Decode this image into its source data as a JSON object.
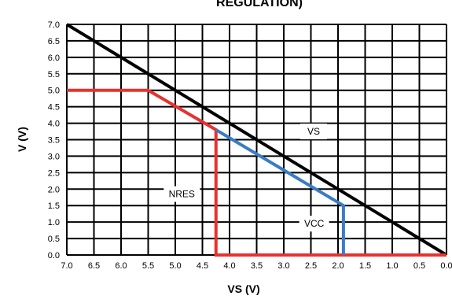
{
  "chart_data": {
    "type": "line",
    "title": "REGULATION)",
    "xlabel": "VS (V)",
    "ylabel": "V (V)",
    "xlim": [
      7.0,
      0.0
    ],
    "ylim": [
      0.0,
      7.0
    ],
    "x_reversed": true,
    "grid": true,
    "x_ticks": [
      "7.0",
      "6.5",
      "6.0",
      "5.5",
      "5.0",
      "4.5",
      "4.0",
      "3.5",
      "3.0",
      "2.5",
      "2.0",
      "1.5",
      "1.0",
      "0.5",
      "0.0"
    ],
    "y_ticks": [
      "0.0",
      "0.5",
      "1.0",
      "1.5",
      "2.0",
      "2.5",
      "3.0",
      "3.5",
      "4.0",
      "4.5",
      "5.0",
      "5.5",
      "6.0",
      "6.5",
      "7.0"
    ],
    "colors": {
      "vs": "#000000",
      "nres": "#e8312f",
      "vcc": "#3a7cc4",
      "grid": "#000000"
    },
    "series": [
      {
        "key": "vs",
        "points": [
          [
            7.0,
            7.0
          ],
          [
            0.0,
            0.0
          ]
        ]
      },
      {
        "key": "nres",
        "points": [
          [
            7.0,
            5.0
          ],
          [
            5.5,
            5.0
          ],
          [
            4.25,
            3.8
          ],
          [
            4.25,
            0.0
          ],
          [
            0.0,
            0.0
          ]
        ]
      },
      {
        "key": "vcc",
        "points": [
          [
            4.25,
            3.8
          ],
          [
            1.9,
            1.5
          ],
          [
            1.9,
            0.0
          ]
        ]
      }
    ],
    "annotations": [
      {
        "key": "vs",
        "text": "VS",
        "x": 2.45,
        "y": 3.75
      },
      {
        "key": "nres",
        "text": "NRES",
        "x": 4.88,
        "y": 1.85
      },
      {
        "key": "vcc",
        "text": "VCC",
        "x": 2.44,
        "y": 0.95
      }
    ]
  }
}
